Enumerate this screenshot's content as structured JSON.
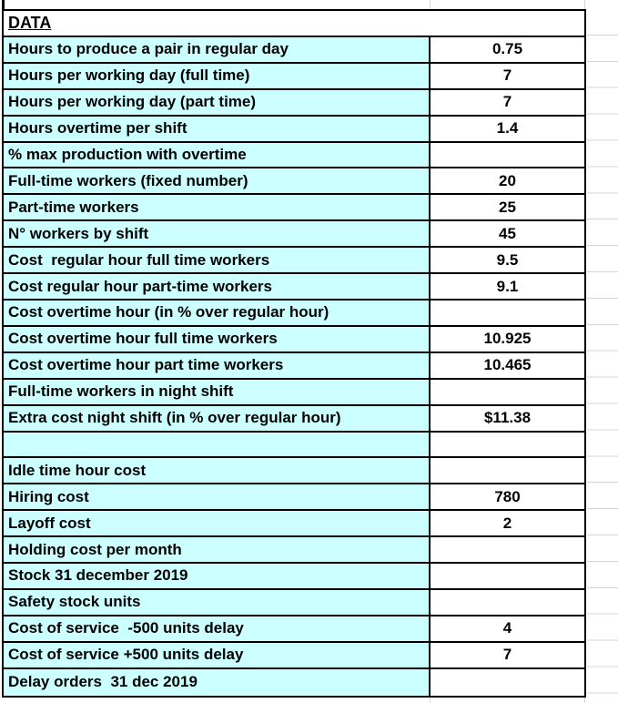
{
  "table": {
    "header": "DATA",
    "rows": [
      {
        "label": "Hours to produce a pair in regular day",
        "value": "0.75"
      },
      {
        "label": "Hours per working day (full time)",
        "value": "7"
      },
      {
        "label": "Hours per working day (part time)",
        "value": "7"
      },
      {
        "label": "Hours overtime per shift",
        "value": "1.4"
      },
      {
        "label": "% max production with overtime",
        "value": ""
      },
      {
        "label": "Full-time workers (fixed number)",
        "value": "20"
      },
      {
        "label": "Part-time workers",
        "value": "25"
      },
      {
        "label": "N° workers by shift",
        "value": "45"
      },
      {
        "label": "Cost  regular hour full time workers",
        "value": "9.5"
      },
      {
        "label": "Cost regular hour part-time workers",
        "value": "9.1"
      },
      {
        "label": "Cost overtime hour (in % over regular hour)",
        "value": ""
      },
      {
        "label": "Cost overtime hour full time workers",
        "value": "10.925"
      },
      {
        "label": "Cost overtime hour part time workers",
        "value": "10.465"
      },
      {
        "label": "Full-time workers in night shift",
        "value": ""
      },
      {
        "label": "Extra cost night shift (in % over regular hour)",
        "value": "$11.38"
      },
      {
        "label": "",
        "value": ""
      },
      {
        "label": "Idle time hour cost",
        "value": ""
      },
      {
        "label": "Hiring cost",
        "value": "780"
      },
      {
        "label": "Layoff cost",
        "value": "2"
      },
      {
        "label": "Holding cost per month",
        "value": ""
      },
      {
        "label": "Stock 31 december 2019",
        "value": ""
      },
      {
        "label": "Safety stock units",
        "value": ""
      },
      {
        "label": "Cost of service  -500 units delay",
        "value": "4"
      },
      {
        "label": "Cost of service +500 units delay",
        "value": "7"
      },
      {
        "label": "Delay orders  31 dec 2019",
        "value": ""
      }
    ],
    "colors": {
      "label_fill": "#CCFFFF",
      "value_fill": "#FFFFFF",
      "border": "#000000",
      "gridline": "#D4D4D4",
      "text": "#000000"
    }
  }
}
